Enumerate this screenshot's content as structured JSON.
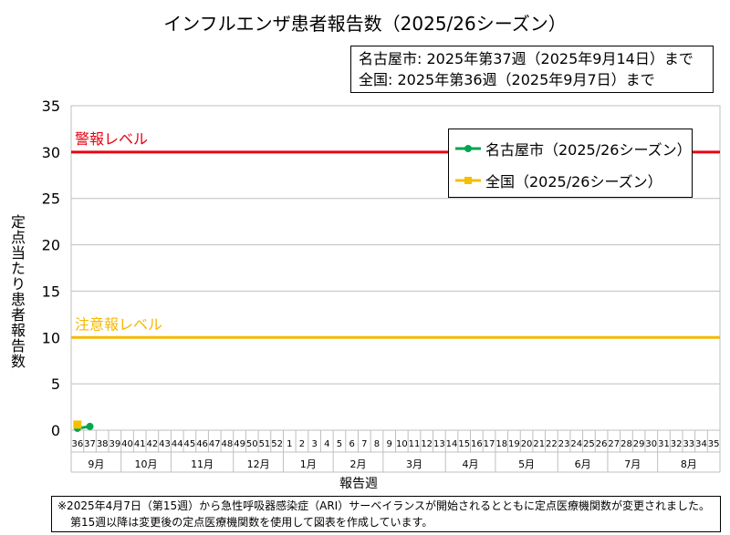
{
  "chart_data": {
    "type": "line",
    "title": "インフルエンザ患者報告数（2025/26シーズン）",
    "info_lines": [
      "名古屋市: 2025年第37週（2025年9月14日）まで",
      "全国: 2025年第36週（2025年9月7日）まで"
    ],
    "ylabel": "定点当たり患者報告数",
    "xlabel": "報告週",
    "ylim": [
      0,
      35
    ],
    "yticks": [
      0,
      5,
      10,
      15,
      20,
      25,
      30,
      35
    ],
    "weeks": [
      "36",
      "37",
      "38",
      "39",
      "40",
      "41",
      "42",
      "43",
      "44",
      "45",
      "46",
      "47",
      "48",
      "49",
      "50",
      "51",
      "52",
      "1",
      "2",
      "3",
      "4",
      "5",
      "6",
      "7",
      "8",
      "9",
      "10",
      "11",
      "12",
      "13",
      "14",
      "15",
      "16",
      "17",
      "18",
      "19",
      "20",
      "21",
      "22",
      "23",
      "24",
      "25",
      "26",
      "27",
      "28",
      "29",
      "30",
      "31",
      "32",
      "33",
      "34",
      "35"
    ],
    "months": [
      {
        "label": "9月",
        "weeks": 4
      },
      {
        "label": "10月",
        "weeks": 4
      },
      {
        "label": "11月",
        "weeks": 5
      },
      {
        "label": "12月",
        "weeks": 4
      },
      {
        "label": "1月",
        "weeks": 4
      },
      {
        "label": "2月",
        "weeks": 4
      },
      {
        "label": "3月",
        "weeks": 5
      },
      {
        "label": "4月",
        "weeks": 4
      },
      {
        "label": "5月",
        "weeks": 5
      },
      {
        "label": "6月",
        "weeks": 4
      },
      {
        "label": "7月",
        "weeks": 4
      },
      {
        "label": "8月",
        "weeks": 5
      }
    ],
    "thresholds": [
      {
        "label": "警報レベル",
        "value": 30,
        "color": "#e60012"
      },
      {
        "label": "注意報レベル",
        "value": 10,
        "color": "#f5b800"
      }
    ],
    "series": [
      {
        "name": "名古屋市（2025/26シーズン）",
        "color": "#00a651",
        "marker": "circle",
        "values": [
          0.2,
          0.4
        ]
      },
      {
        "name": "全国（2025/26シーズン）",
        "color": "#f5c000",
        "marker": "square",
        "values": [
          0.6
        ]
      }
    ],
    "legend_position": "top-right",
    "footnote": [
      "※2025年4月7日（第15週）から急性呼吸器感染症（ARI）サーベイランスが開始されるとともに定点医療機関数が変更されました。",
      "第15週以降は変更後の定点医療機関数を使用して図表を作成しています。"
    ]
  }
}
